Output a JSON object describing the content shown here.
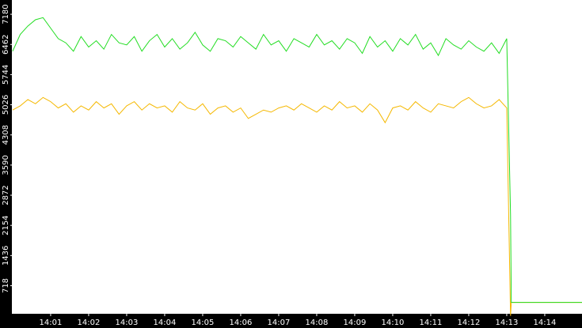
{
  "chart_data": {
    "type": "line",
    "x": [
      0,
      0.2,
      0.4,
      0.6,
      0.8,
      1,
      1.2,
      1.4,
      1.6,
      1.8,
      2,
      2.2,
      2.4,
      2.6,
      2.8,
      3,
      3.2,
      3.4,
      3.6,
      3.8,
      4,
      4.2,
      4.4,
      4.6,
      4.8,
      5,
      5.2,
      5.4,
      5.6,
      5.8,
      6,
      6.2,
      6.4,
      6.6,
      6.8,
      7,
      7.2,
      7.4,
      7.6,
      7.8,
      8,
      8.2,
      8.4,
      8.6,
      8.8,
      9,
      9.2,
      9.4,
      9.6,
      9.8,
      10,
      10.2,
      10.4,
      10.6,
      10.8,
      11,
      11.2,
      11.4,
      11.6,
      11.8,
      12,
      12.2,
      12.4,
      12.6,
      12.8,
      13,
      13.1,
      13.12,
      14.98
    ],
    "series": [
      {
        "color": "#f5b800",
        "values": [
          4900,
          5000,
          5150,
          5050,
          5200,
          5100,
          4950,
          5050,
          4850,
          5000,
          4900,
          5100,
          4950,
          5050,
          4800,
          5000,
          5100,
          4900,
          5050,
          4950,
          5000,
          4850,
          5100,
          4950,
          4900,
          5050,
          4800,
          4950,
          5000,
          4850,
          4950,
          4700,
          4800,
          4900,
          4850,
          4950,
          5000,
          4900,
          5050,
          4950,
          4850,
          5000,
          4900,
          5100,
          4950,
          5000,
          4850,
          5050,
          4900,
          4600,
          4950,
          5000,
          4900,
          5100,
          4950,
          4850,
          5050,
          5000,
          4950,
          5100,
          5200,
          5050,
          4950,
          5000,
          5150,
          4950,
          0,
          320,
          320
        ]
      },
      {
        "color": "#22dd22",
        "values": [
          6300,
          6700,
          6900,
          7050,
          7100,
          6850,
          6600,
          6500,
          6300,
          6650,
          6400,
          6550,
          6350,
          6700,
          6500,
          6450,
          6650,
          6300,
          6550,
          6700,
          6400,
          6600,
          6350,
          6500,
          6750,
          6450,
          6300,
          6600,
          6550,
          6400,
          6650,
          6500,
          6350,
          6700,
          6450,
          6550,
          6300,
          6600,
          6500,
          6400,
          6700,
          6450,
          6550,
          6350,
          6600,
          6500,
          6250,
          6650,
          6400,
          6550,
          6300,
          6600,
          6450,
          6700,
          6350,
          6500,
          6200,
          6600,
          6450,
          6350,
          6550,
          6400,
          6300,
          6500,
          6250,
          6600,
          2400,
          320,
          320
        ]
      }
    ],
    "xlim": [
      -0.02,
      14.98
    ],
    "xticks": [
      {
        "value": 1,
        "label": "14:01"
      },
      {
        "value": 2,
        "label": "14:02"
      },
      {
        "value": 3,
        "label": "14:03"
      },
      {
        "value": 4,
        "label": "14:04"
      },
      {
        "value": 5,
        "label": "14:05"
      },
      {
        "value": 6,
        "label": "14:06"
      },
      {
        "value": 7,
        "label": "14:07"
      },
      {
        "value": 8,
        "label": "14:08"
      },
      {
        "value": 9,
        "label": "14:09"
      },
      {
        "value": 10,
        "label": "14:10"
      },
      {
        "value": 11,
        "label": "14:11"
      },
      {
        "value": 12,
        "label": "14:12"
      },
      {
        "value": 13,
        "label": "14:13"
      },
      {
        "value": 14,
        "label": "14:14"
      }
    ],
    "ylim": [
      50,
      7520
    ],
    "yticks": [
      718,
      1436,
      2154,
      2872,
      3590,
      4308,
      5026,
      5744,
      6462,
      7180
    ],
    "grid": false
  }
}
